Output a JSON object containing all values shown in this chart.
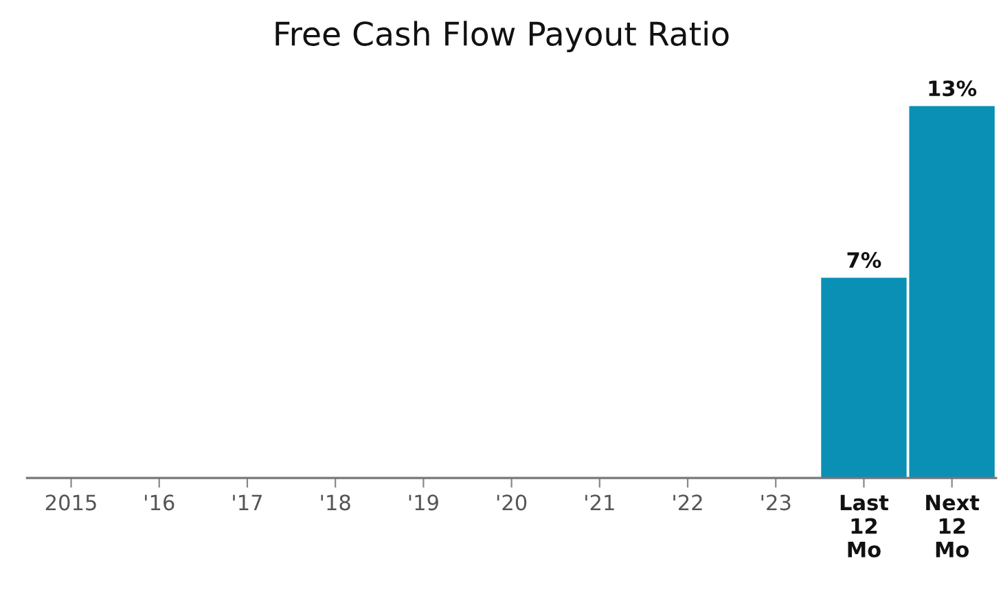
{
  "chart_data": {
    "type": "bar",
    "title": "Free Cash Flow Payout Ratio",
    "categories": [
      "2015",
      "'16",
      "'17",
      "'18",
      "'19",
      "'20",
      "'21",
      "'22",
      "'23",
      "Last\n12\nMo",
      "Next\n12\nMo"
    ],
    "values": [
      null,
      null,
      null,
      null,
      null,
      null,
      null,
      null,
      null,
      7,
      13
    ],
    "value_labels": [
      null,
      null,
      null,
      null,
      null,
      null,
      null,
      null,
      null,
      "7%",
      "13%"
    ],
    "color": "#0a90b5",
    "grid": false,
    "legend": false
  }
}
